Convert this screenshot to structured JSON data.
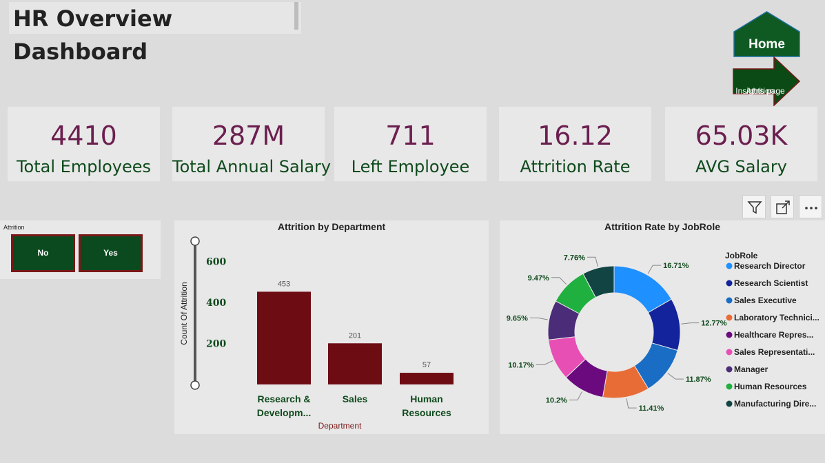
{
  "page_title": "HR Overview Dashboard",
  "nav": {
    "home_label": "Home",
    "attrition_label_line1": "Attrition",
    "attrition_label_line2": "Insights page",
    "home_color": "#0f5a23",
    "attrition_color": "#0b4a14"
  },
  "kpis": [
    {
      "value": "4410",
      "label": "Total Employees"
    },
    {
      "value": "287M",
      "label": "Total Annual Salary"
    },
    {
      "value": "711",
      "label": "Left Employee"
    },
    {
      "value": "16.12",
      "label": "Attrition Rate"
    },
    {
      "value": "65.03K",
      "label": "AVG Salary"
    }
  ],
  "slicer": {
    "header": "Attrition",
    "options": [
      "No",
      "Yes"
    ]
  },
  "toolbar": {
    "filter_icon": "filter-icon",
    "focus_icon": "focus-mode-icon",
    "more_icon": "more-options-icon"
  },
  "chart_data": [
    {
      "type": "bar",
      "title": "Attrition by Department",
      "xlabel": "Department",
      "ylabel": "Count Of Attrition",
      "categories_line1": [
        "Research &",
        "Sales",
        "Human"
      ],
      "categories_line2": [
        "Developm...",
        "",
        "Resources"
      ],
      "values": [
        453,
        201,
        57
      ],
      "ylim": [
        0,
        700
      ],
      "yticks": [
        200,
        400,
        600
      ],
      "bar_color": "#6e0c14"
    },
    {
      "type": "pie",
      "title": "Attrition Rate by JobRole",
      "legend_title": "JobRole",
      "legend_position": "right",
      "series": [
        {
          "name": "Research Director",
          "value": 16.71,
          "label": "16.71%",
          "color": "#1e90ff"
        },
        {
          "name": "Research Scientist",
          "value": 12.77,
          "label": "12.77%",
          "color": "#13239b"
        },
        {
          "name": "Sales Executive",
          "value": 11.87,
          "label": "11.87%",
          "color": "#1a6dc4"
        },
        {
          "name": "Laboratory Technici...",
          "value": 11.41,
          "label": "11.41%",
          "color": "#e86c36"
        },
        {
          "name": "Healthcare Repres...",
          "value": 10.2,
          "label": "10.2%",
          "color": "#6b0a7f"
        },
        {
          "name": "Sales Representati...",
          "value": 10.17,
          "label": "10.17%",
          "color": "#e84fb5"
        },
        {
          "name": "Manager",
          "value": 9.65,
          "label": "9.65%",
          "color": "#4b2c78"
        },
        {
          "name": "Human Resources",
          "value": 9.47,
          "label": "9.47%",
          "color": "#20b040"
        },
        {
          "name": "Manufacturing Dire...",
          "value": 7.76,
          "label": "7.76%",
          "color": "#124444"
        }
      ]
    }
  ]
}
